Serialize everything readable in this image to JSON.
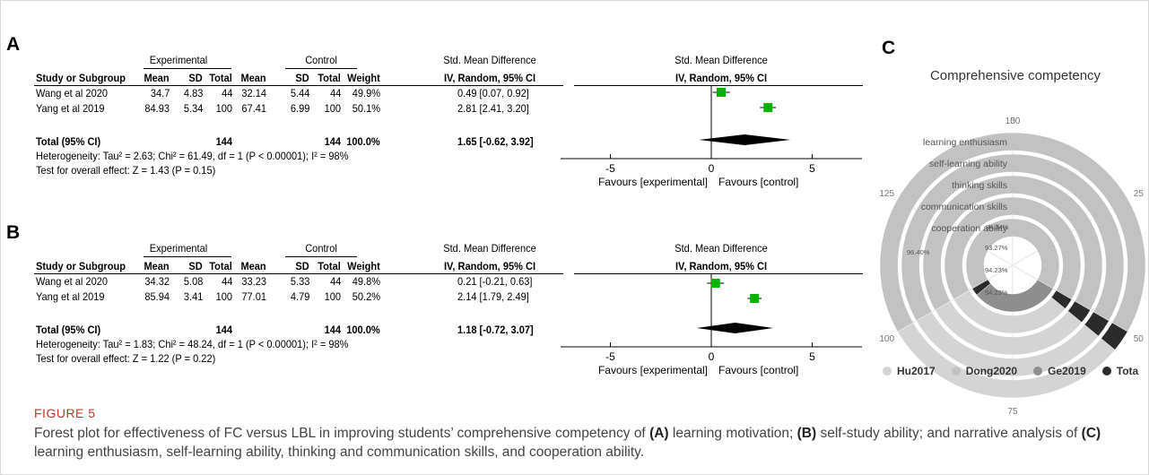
{
  "figure": {
    "label": "FIGURE 5",
    "caption_parts": [
      {
        "t": "Forest plot for effectiveness of FC versus LBL in improving students’ comprehensive competency of ",
        "b": false
      },
      {
        "t": "(A)",
        "b": true
      },
      {
        "t": " learning motivation; ",
        "b": false
      },
      {
        "t": "(B)",
        "b": true
      },
      {
        "t": " self-study ability; and narrative analysis of ",
        "b": false
      },
      {
        "t": "(C)",
        "b": true
      },
      {
        "t": " learning enthusiasm, self-learning ability, thinking and communication skills, and cooperation ability.",
        "b": false
      }
    ]
  },
  "panels": [
    {
      "letter": "A",
      "headers": {
        "group_exp": "Experimental",
        "group_ctl": "Control",
        "smd_col": "Std. Mean Difference",
        "smd_sub": "IV, Random, 95% CI",
        "plot_title": "Std. Mean Difference",
        "plot_sub": "IV, Random, 95% CI",
        "study": "Study or Subgroup",
        "mean": "Mean",
        "sd": "SD",
        "total": "Total",
        "weight": "Weight"
      },
      "studies": [
        {
          "name": "Wang et al 2020",
          "e_mean": "34.7",
          "e_sd": "4.83",
          "e_total": "44",
          "c_mean": "32.14",
          "c_sd": "5.44",
          "c_total": "44",
          "weight": "49.9%",
          "ci": "0.49 [0.07, 0.92]",
          "est": 0.49,
          "lo": 0.07,
          "hi": 0.92
        },
        {
          "name": "Yang et al 2019",
          "e_mean": "84.93",
          "e_sd": "5.34",
          "e_total": "100",
          "c_mean": "67.41",
          "c_sd": "6.99",
          "c_total": "100",
          "weight": "50.1%",
          "ci": "2.81 [2.41, 3.20]",
          "est": 2.81,
          "lo": 2.41,
          "hi": 3.2
        }
      ],
      "total": {
        "label": "Total (95% CI)",
        "e_total": "144",
        "c_total": "144",
        "weight": "100.0%",
        "ci": "1.65 [-0.62, 3.92]",
        "est": 1.65,
        "lo": -0.62,
        "hi": 3.92
      },
      "heterogeneity": "Heterogeneity: Tau² = 2.63; Chi² = 61.49, df = 1 (P < 0.00001); I² = 98%",
      "overall": "Test for overall effect: Z = 1.43 (P = 0.15)",
      "axis_ticks": [
        "-10",
        "-5",
        "0",
        "5",
        "10"
      ],
      "axis_values": [
        -10,
        -5,
        0,
        5,
        10
      ],
      "favours_left": "Favours [experimental]",
      "favours_right": "Favours [control]"
    },
    {
      "letter": "B",
      "headers": {
        "group_exp": "Experimental",
        "group_ctl": "Control",
        "smd_col": "Std. Mean Difference",
        "smd_sub": "IV, Random, 95% CI",
        "plot_title": "Std. Mean Difference",
        "plot_sub": "IV, Random, 95% CI",
        "study": "Study or Subgroup",
        "mean": "Mean",
        "sd": "SD",
        "total": "Total",
        "weight": "Weight"
      },
      "studies": [
        {
          "name": "Wang et al 2020",
          "e_mean": "34.32",
          "e_sd": "5.08",
          "e_total": "44",
          "c_mean": "33.23",
          "c_sd": "5.33",
          "c_total": "44",
          "weight": "49.8%",
          "ci": "0.21 [-0.21, 0.63]",
          "est": 0.21,
          "lo": -0.21,
          "hi": 0.63
        },
        {
          "name": "Yang et al 2019",
          "e_mean": "85.94",
          "e_sd": "3.41",
          "e_total": "100",
          "c_mean": "77.01",
          "c_sd": "4.79",
          "c_total": "100",
          "weight": "50.2%",
          "ci": "2.14 [1.79, 2.49]",
          "est": 2.14,
          "lo": 1.79,
          "hi": 2.49
        }
      ],
      "total": {
        "label": "Total (95% CI)",
        "e_total": "144",
        "c_total": "144",
        "weight": "100.0%",
        "ci": "1.18 [-0.72, 3.07]",
        "est": 1.18,
        "lo": -0.72,
        "hi": 3.07
      },
      "heterogeneity": "Heterogeneity: Tau² = 1.83; Chi² = 48.24, df = 1 (P < 0.00001); I² = 98%",
      "overall": "Test for overall effect: Z = 1.22 (P = 0.22)",
      "axis_ticks": [
        "-10",
        "-5",
        "0",
        "5",
        "10"
      ],
      "axis_values": [
        -10,
        -5,
        0,
        5,
        10
      ],
      "favours_left": "Favours [experimental]",
      "favours_right": "Favours [control]"
    }
  ],
  "chart_data": {
    "type": "radial-bar",
    "letter": "C",
    "title": "Comprehensive competency",
    "angle_axis": {
      "min": 0,
      "max": 150,
      "ticks": [
        "0",
        "25",
        "50",
        "75",
        "100",
        "125",
        "150"
      ],
      "tick_values": [
        0,
        25,
        50,
        75,
        100,
        125,
        150
      ]
    },
    "categories": [
      "learning enthusiasm",
      "self-learning ability",
      "thinking skills",
      "communication skills",
      "cooperation ability"
    ],
    "series": [
      {
        "name": "Hu2017",
        "color": "#d4d4d4",
        "values": [
          100,
          100,
          100,
          100,
          100
        ]
      },
      {
        "name": "Dong2020",
        "color": "#c2c2c2",
        "values": [
          100,
          100,
          100,
          100,
          100
        ]
      },
      {
        "name": "Ge2019",
        "color": "#8e8e8e",
        "values": [
          0,
          0,
          0,
          0,
          46
        ]
      },
      {
        "name": "Total",
        "color": "#2b2b2b",
        "values": [
          4,
          4,
          4,
          4,
          4
        ]
      }
    ],
    "annotations": [
      "94.34%",
      "93.27%",
      "94.23%",
      "94.23%",
      "96.40%"
    ],
    "legend_labels": [
      "Hu2017",
      "Dong2020",
      "Ge2019",
      "Tota"
    ]
  }
}
